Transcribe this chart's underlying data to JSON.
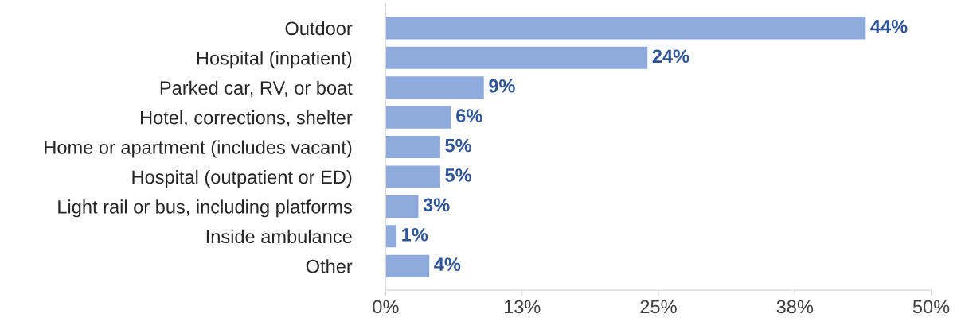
{
  "chart_data": {
    "type": "bar",
    "orientation": "horizontal",
    "categories": [
      "Outdoor",
      "Hospital (inpatient)",
      "Parked car, RV, or boat",
      "Hotel, corrections, shelter",
      "Home or apartment (includes vacant)",
      "Hospital (outpatient or ED)",
      "Light rail or bus, including platforms",
      "Inside ambulance",
      "Other"
    ],
    "values": [
      44,
      24,
      9,
      6,
      5,
      5,
      3,
      1,
      4
    ],
    "value_labels": [
      "44%",
      "24%",
      "9%",
      "6%",
      "5%",
      "5%",
      "3%",
      "1%",
      "4%"
    ],
    "color": "#8faadc",
    "xlim": [
      0,
      50
    ],
    "xticks": [
      {
        "value": 0,
        "label": "0%"
      },
      {
        "value": 12.5,
        "label": "13%"
      },
      {
        "value": 25,
        "label": "25%"
      },
      {
        "value": 37.5,
        "label": "38%"
      },
      {
        "value": 50,
        "label": "50%"
      }
    ],
    "grid": false,
    "legend": false
  }
}
